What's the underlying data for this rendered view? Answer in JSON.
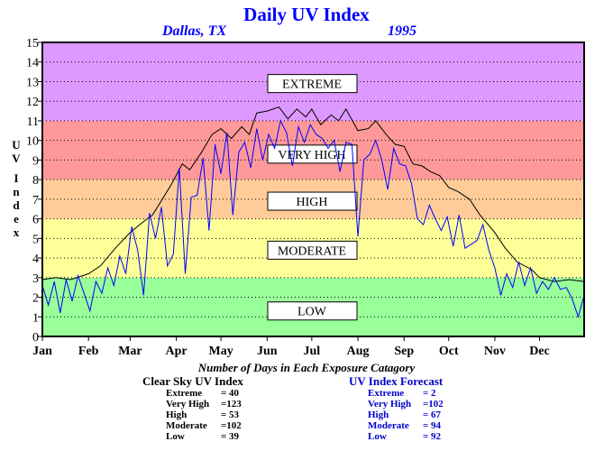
{
  "title": "Daily UV Index",
  "location": "Dallas, TX",
  "year": "1995",
  "stats_heading": "Number of Days in Each Exposure Catagory",
  "clear_sky": {
    "title": "Clear Sky UV Index",
    "rows": [
      {
        "label": "Extreme",
        "value": "= 40"
      },
      {
        "label": "Very High",
        "value": "=123"
      },
      {
        "label": "High",
        "value": "= 53"
      },
      {
        "label": "Moderate",
        "value": "=102"
      },
      {
        "label": "Low",
        "value": "= 39"
      }
    ],
    "color": "#000000"
  },
  "forecast": {
    "title": "UV Index Forecast",
    "rows": [
      {
        "label": "Extreme",
        "value": "= 2"
      },
      {
        "label": "Very High",
        "value": "=102"
      },
      {
        "label": "High",
        "value": "= 67"
      },
      {
        "label": "Moderate",
        "value": "= 94"
      },
      {
        "label": "Low",
        "value": "= 92"
      }
    ],
    "color": "#0000cc"
  },
  "chart_data": {
    "type": "line",
    "ylabel": "UV Index",
    "ylim": [
      0,
      15
    ],
    "xlim": [
      1,
      365
    ],
    "y_ticks": [
      "0",
      "1",
      "2",
      "3",
      "4",
      "5",
      "6",
      "7",
      "8",
      "9",
      "10",
      "11",
      "12",
      "13",
      "14",
      "15"
    ],
    "x_tick_labels": [
      "Jan",
      "Feb",
      "Mar",
      "Apr",
      "May",
      "Jun",
      "Jul",
      "Aug",
      "Sep",
      "Oct",
      "Nov",
      "Dec"
    ],
    "x_tick_days": [
      1,
      32,
      60,
      91,
      121,
      152,
      182,
      213,
      244,
      274,
      305,
      335
    ],
    "grid": true,
    "bands": [
      {
        "label": "LOW",
        "from": 0,
        "to": 3,
        "color": "#99ff99"
      },
      {
        "label": "MODERATE",
        "from": 3,
        "to": 6,
        "color": "#ffff99"
      },
      {
        "label": "HIGH",
        "from": 6,
        "to": 8,
        "color": "#ffcc99"
      },
      {
        "label": "VERY HIGH",
        "from": 8,
        "to": 11,
        "color": "#ff9999"
      },
      {
        "label": "EXTREME",
        "from": 11,
        "to": 15,
        "color": "#dd99ff"
      }
    ],
    "band_label_values": [
      1.3,
      4.4,
      6.9,
      9.3,
      12.9
    ],
    "series": [
      {
        "style": "clear-sky",
        "color": "#000000",
        "x": [
          1,
          10,
          20,
          32,
          40,
          50,
          60,
          68,
          75,
          80,
          88,
          95,
          100,
          108,
          115,
          121,
          128,
          135,
          140,
          145,
          152,
          160,
          166,
          172,
          178,
          182,
          188,
          195,
          200,
          205,
          213,
          220,
          225,
          232,
          238,
          244,
          250,
          256,
          262,
          268,
          274,
          280,
          288,
          295,
          305,
          312,
          320,
          330,
          335,
          345,
          355,
          365
        ],
        "values": [
          2.9,
          3.0,
          2.9,
          3.2,
          3.6,
          4.5,
          5.3,
          5.8,
          6.2,
          6.8,
          7.8,
          8.8,
          8.5,
          9.4,
          10.3,
          10.6,
          10.1,
          10.7,
          10.3,
          11.4,
          11.5,
          11.7,
          11.1,
          11.6,
          11.2,
          11.6,
          10.8,
          11.3,
          11.0,
          11.6,
          10.5,
          10.6,
          11.0,
          10.3,
          9.8,
          9.7,
          8.8,
          8.7,
          8.4,
          8.2,
          7.6,
          7.4,
          7.0,
          6.2,
          5.3,
          4.5,
          3.8,
          3.4,
          3.0,
          2.8,
          2.9,
          2.8
        ]
      },
      {
        "style": "forecast",
        "color": "#0000ff",
        "x": [
          1,
          5,
          9,
          13,
          17,
          21,
          25,
          29,
          33,
          37,
          41,
          45,
          49,
          53,
          57,
          61,
          65,
          69,
          73,
          77,
          81,
          85,
          89,
          93,
          97,
          101,
          105,
          109,
          113,
          117,
          121,
          125,
          129,
          133,
          137,
          141,
          145,
          149,
          153,
          157,
          161,
          165,
          169,
          173,
          177,
          181,
          185,
          189,
          193,
          197,
          201,
          205,
          209,
          213,
          217,
          221,
          225,
          229,
          233,
          237,
          241,
          245,
          249,
          253,
          257,
          261,
          265,
          269,
          273,
          277,
          281,
          285,
          289,
          293,
          297,
          301,
          305,
          309,
          313,
          317,
          321,
          325,
          329,
          333,
          337,
          341,
          345,
          349,
          353,
          357,
          361,
          365
        ],
        "values": [
          2.6,
          1.6,
          2.8,
          1.2,
          2.9,
          1.8,
          3.1,
          2.2,
          1.3,
          2.8,
          2.2,
          3.5,
          2.6,
          4.1,
          3.2,
          5.6,
          4.4,
          2.1,
          6.3,
          5.0,
          6.6,
          3.6,
          4.2,
          8.6,
          3.2,
          7.1,
          7.2,
          9.1,
          5.4,
          9.8,
          8.3,
          10.4,
          6.2,
          9.4,
          9.9,
          8.6,
          10.6,
          9.0,
          10.3,
          9.6,
          11.0,
          10.4,
          8.7,
          10.7,
          9.9,
          10.8,
          10.3,
          10.1,
          9.6,
          10.0,
          8.4,
          9.9,
          9.8,
          5.1,
          9.0,
          9.3,
          10.0,
          9.0,
          7.5,
          9.6,
          8.8,
          8.7,
          7.8,
          6.0,
          5.7,
          6.7,
          6.0,
          5.4,
          6.1,
          4.6,
          6.2,
          4.5,
          4.7,
          4.9,
          5.7,
          4.4,
          3.5,
          2.1,
          3.2,
          2.5,
          3.8,
          2.6,
          3.5,
          2.2,
          2.8,
          2.4,
          3.0,
          2.4,
          2.5,
          1.9,
          1.0,
          2.1
        ]
      }
    ]
  }
}
